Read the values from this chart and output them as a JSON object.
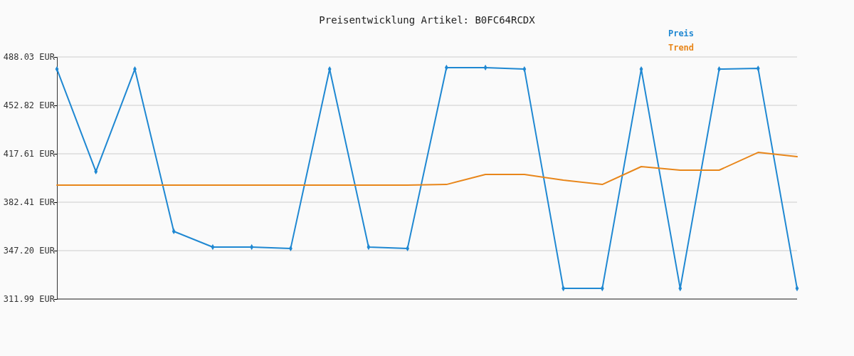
{
  "chart_data": {
    "type": "line",
    "title": "Preisentwicklung Artikel: B0FC64RCDX",
    "categories": [
      null,
      null,
      null,
      null,
      null,
      null,
      null,
      null,
      null,
      null,
      null,
      null,
      null,
      null,
      null,
      null,
      null,
      null,
      null,
      null
    ],
    "series": [
      {
        "name": "Preis",
        "color": "#1f88d2",
        "marker": "diamond",
        "values": [
          479.2,
          404.7,
          479.2,
          361.2,
          349.8,
          349.8,
          348.8,
          479.2,
          349.8,
          348.8,
          480.3,
          480.3,
          479.2,
          319.7,
          319.7,
          479.2,
          319.7,
          479.2,
          479.7,
          319.7
        ]
      },
      {
        "name": "Trend",
        "color": "#e8861a",
        "marker": "none",
        "values": [
          394.8,
          394.8,
          394.8,
          394.8,
          394.8,
          394.8,
          394.8,
          394.8,
          394.8,
          394.8,
          395.3,
          402.6,
          402.6,
          398.4,
          395.3,
          408.3,
          405.7,
          405.7,
          418.6,
          415.5
        ]
      }
    ],
    "ylim": [
      311.99,
      488.03
    ],
    "yticks": [
      {
        "value": 311.99,
        "label": "311.99 EUR"
      },
      {
        "value": 347.2,
        "label": "347.20 EUR"
      },
      {
        "value": 382.41,
        "label": "382.41 EUR"
      },
      {
        "value": 417.61,
        "label": "417.61 EUR"
      },
      {
        "value": 452.82,
        "label": "452.82 EUR"
      },
      {
        "value": 488.03,
        "label": "488.03 EUR"
      }
    ],
    "grid": "y",
    "legend": "top right",
    "line_style": "solid"
  }
}
